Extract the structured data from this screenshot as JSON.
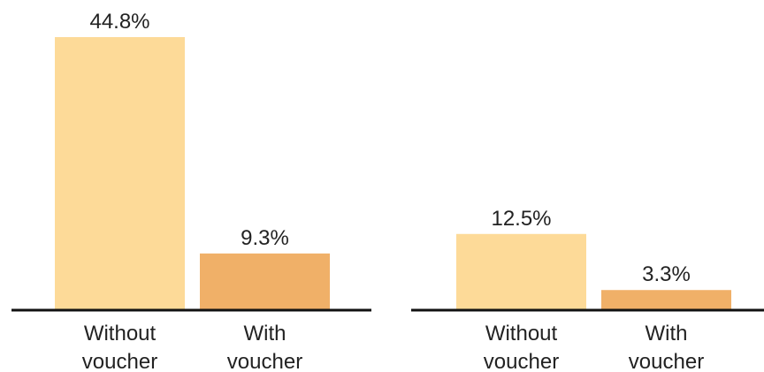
{
  "chart_data": [
    {
      "type": "bar",
      "categories": [
        [
          "Without",
          "voucher"
        ],
        [
          "With",
          "voucher"
        ]
      ],
      "values": [
        44.8,
        9.3
      ],
      "value_labels": [
        "44.8%",
        "9.3%"
      ],
      "colors": [
        "#FDDA98",
        "#F0B068"
      ],
      "ylim": [
        0,
        44.8
      ],
      "title": "",
      "xlabel": "",
      "ylabel": ""
    },
    {
      "type": "bar",
      "categories": [
        [
          "Without",
          "voucher"
        ],
        [
          "With",
          "voucher"
        ]
      ],
      "values": [
        12.5,
        3.3
      ],
      "value_labels": [
        "12.5%",
        "3.3%"
      ],
      "colors": [
        "#FDDA98",
        "#F0B068"
      ],
      "ylim": [
        0,
        44.8
      ],
      "title": "",
      "xlabel": "",
      "ylabel": ""
    }
  ],
  "colors": {
    "axis": "#111111",
    "text": "#222222"
  }
}
